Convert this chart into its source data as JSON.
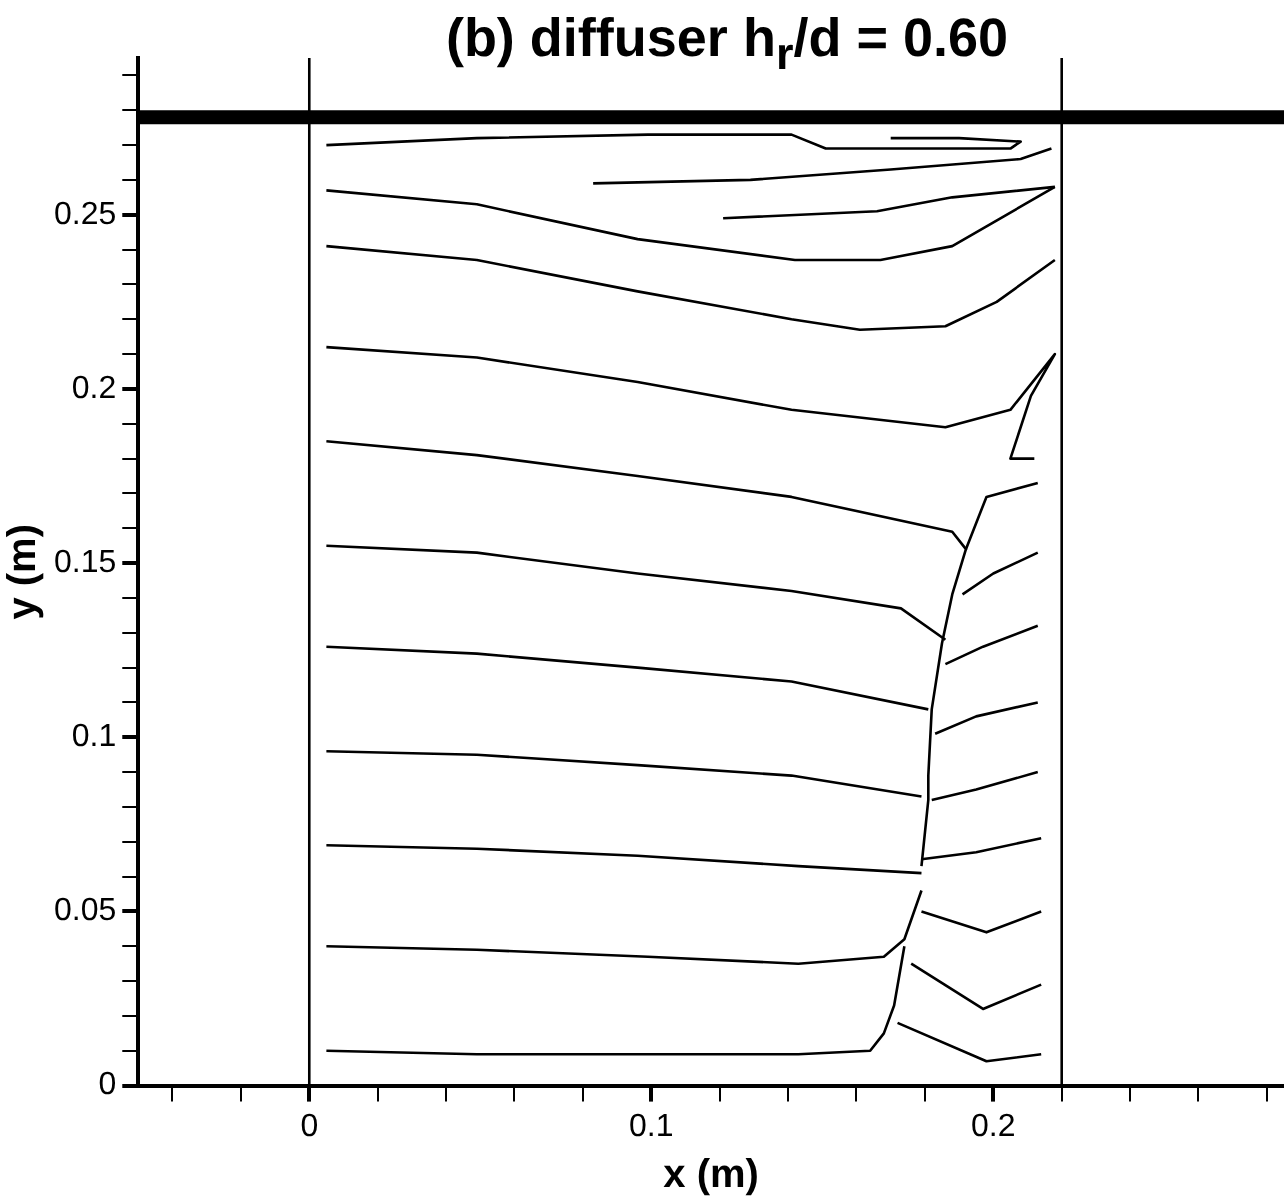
{
  "chart_data": {
    "type": "line",
    "title": "(b) diffuser h$_{r}$/d = 0.60",
    "xlabel": "x (m)",
    "ylabel": "y (m)",
    "xlim": [
      -0.05,
      0.285
    ],
    "ylim": [
      0,
      0.295
    ],
    "xticks": [
      {
        "value": -0.04,
        "label": null
      },
      {
        "value": -0.02,
        "label": null
      },
      0,
      {
        "value": 0.02,
        "label": null
      },
      {
        "value": 0.04,
        "label": null
      },
      {
        "value": 0.06,
        "label": null
      },
      {
        "value": 0.08,
        "label": null
      },
      0.1,
      {
        "value": 0.12,
        "label": null
      },
      {
        "value": 0.14,
        "label": null
      },
      {
        "value": 0.16,
        "label": null
      },
      {
        "value": 0.18,
        "label": null
      },
      0.2,
      {
        "value": 0.22,
        "label": null
      },
      {
        "value": 0.24,
        "label": null
      },
      {
        "value": 0.26,
        "label": null
      },
      {
        "value": 0.28,
        "label": null
      }
    ],
    "yticks": [
      0,
      {
        "value": 0.01,
        "label": null
      },
      {
        "value": 0.02,
        "label": null
      },
      {
        "value": 0.03,
        "label": null
      },
      {
        "value": 0.04,
        "label": null
      },
      0.05,
      {
        "value": 0.06,
        "label": null
      },
      {
        "value": 0.07,
        "label": null
      },
      {
        "value": 0.08,
        "label": null
      },
      {
        "value": 0.09,
        "label": null
      },
      0.1,
      {
        "value": 0.11,
        "label": null
      },
      {
        "value": 0.12,
        "label": null
      },
      {
        "value": 0.13,
        "label": null
      },
      {
        "value": 0.14,
        "label": null
      },
      0.15,
      {
        "value": 0.16,
        "label": null
      },
      {
        "value": 0.17,
        "label": null
      },
      {
        "value": 0.18,
        "label": null
      },
      {
        "value": 0.19,
        "label": null
      },
      0.2,
      {
        "value": 0.21,
        "label": null
      },
      {
        "value": 0.22,
        "label": null
      },
      {
        "value": 0.23,
        "label": null
      },
      {
        "value": 0.24,
        "label": null
      },
      0.25,
      {
        "value": 0.26,
        "label": null
      },
      {
        "value": 0.27,
        "label": null
      },
      {
        "value": 0.28,
        "label": null
      },
      {
        "value": 0.29,
        "label": null
      }
    ],
    "marker": "none",
    "line_style": "solid",
    "ref_lines": [
      {
        "axis": "x",
        "value": 0,
        "color": "#000000"
      },
      {
        "axis": "x",
        "value": 0.22,
        "color": "#000000"
      }
    ],
    "bands": [
      {
        "axis": "y",
        "from": 0.276,
        "to": 0.28,
        "color": "#000000"
      }
    ],
    "series": [
      {
        "color": "#000000",
        "x": [
          0.005,
          0.049,
          0.099,
          0.141,
          0.151,
          0.175,
          0.205,
          0.208,
          0.19,
          0.17
        ],
        "values": [
          0.27,
          0.272,
          0.273,
          0.273,
          0.269,
          0.269,
          0.269,
          0.271,
          0.272,
          0.272
        ]
      },
      {
        "color": "#000000",
        "x": [
          0.083,
          0.129,
          0.17,
          0.208,
          0.217
        ],
        "values": [
          0.259,
          0.26,
          0.263,
          0.266,
          0.269
        ]
      },
      {
        "color": "#000000",
        "x": [
          0.121,
          0.166,
          0.188,
          0.218
        ],
        "values": [
          0.249,
          0.251,
          0.255,
          0.258
        ]
      },
      {
        "color": "#000000",
        "x": [
          0.005,
          0.049,
          0.096,
          0.142,
          0.167,
          0.188,
          0.218
        ],
        "values": [
          0.257,
          0.253,
          0.243,
          0.237,
          0.237,
          0.241,
          0.258
        ]
      },
      {
        "color": "#000000",
        "x": [
          0.005,
          0.049,
          0.096,
          0.141,
          0.161,
          0.186,
          0.201,
          0.218
        ],
        "values": [
          0.241,
          0.237,
          0.228,
          0.22,
          0.217,
          0.218,
          0.225,
          0.237
        ]
      },
      {
        "color": "#000000",
        "x": [
          0.005,
          0.049,
          0.096,
          0.141,
          0.186,
          0.205,
          0.218,
          0.211,
          0.205,
          0.212
        ],
        "values": [
          0.212,
          0.209,
          0.202,
          0.194,
          0.189,
          0.194,
          0.21,
          0.198,
          0.18,
          0.18
        ]
      },
      {
        "color": "#000000",
        "x": [
          0.005,
          0.049,
          0.096,
          0.141,
          0.188,
          0.192,
          0.188,
          0.185,
          0.182,
          0.181,
          0.181,
          0.179
        ],
        "values": [
          0.185,
          0.181,
          0.175,
          0.169,
          0.159,
          0.154,
          0.141,
          0.127,
          0.108,
          0.089,
          0.082,
          0.063
        ]
      },
      {
        "color": "#000000",
        "x": [
          0.213,
          0.198,
          0.192
        ],
        "values": [
          0.173,
          0.169,
          0.154
        ]
      },
      {
        "color": "#000000",
        "x": [
          0.005,
          0.049,
          0.096,
          0.141,
          0.173,
          0.186
        ],
        "values": [
          0.155,
          0.153,
          0.147,
          0.142,
          0.137,
          0.128
        ]
      },
      {
        "color": "#000000",
        "x": [
          0.213,
          0.2,
          0.191
        ],
        "values": [
          0.153,
          0.147,
          0.141
        ]
      },
      {
        "color": "#000000",
        "x": [
          0.213,
          0.197,
          0.186
        ],
        "values": [
          0.132,
          0.126,
          0.121
        ]
      },
      {
        "color": "#000000",
        "x": [
          0.213,
          0.195,
          0.183
        ],
        "values": [
          0.11,
          0.106,
          0.101
        ]
      },
      {
        "color": "#000000",
        "x": [
          0.213,
          0.195,
          0.182
        ],
        "values": [
          0.09,
          0.085,
          0.082
        ]
      },
      {
        "color": "#000000",
        "x": [
          0.005,
          0.049,
          0.096,
          0.141,
          0.181
        ],
        "values": [
          0.126,
          0.124,
          0.12,
          0.116,
          0.108
        ]
      },
      {
        "color": "#000000",
        "x": [
          0.005,
          0.049,
          0.096,
          0.141,
          0.179
        ],
        "values": [
          0.096,
          0.095,
          0.092,
          0.089,
          0.083
        ]
      },
      {
        "color": "#000000",
        "x": [
          0.005,
          0.049,
          0.096,
          0.143,
          0.179
        ],
        "values": [
          0.069,
          0.068,
          0.066,
          0.063,
          0.061
        ]
      },
      {
        "color": "#000000",
        "x": [
          0.214,
          0.195,
          0.179
        ],
        "values": [
          0.071,
          0.067,
          0.065
        ]
      },
      {
        "color": "#000000",
        "x": [
          0.214,
          0.198,
          0.179
        ],
        "values": [
          0.05,
          0.044,
          0.05
        ]
      },
      {
        "color": "#000000",
        "x": [
          0.214,
          0.197,
          0.176
        ],
        "values": [
          0.029,
          0.022,
          0.035
        ]
      },
      {
        "color": "#000000",
        "x": [
          0.214,
          0.198,
          0.172
        ],
        "values": [
          0.009,
          0.007,
          0.018
        ]
      },
      {
        "color": "#000000",
        "x": [
          0.005,
          0.049,
          0.099,
          0.143,
          0.168,
          0.174,
          0.179
        ],
        "values": [
          0.04,
          0.039,
          0.037,
          0.035,
          0.037,
          0.042,
          0.056
        ]
      },
      {
        "color": "#000000",
        "x": [
          0.005,
          0.049,
          0.099,
          0.143,
          0.164,
          0.168,
          0.171,
          0.174
        ],
        "values": [
          0.01,
          0.009,
          0.009,
          0.009,
          0.01,
          0.015,
          0.023,
          0.04
        ]
      }
    ]
  }
}
